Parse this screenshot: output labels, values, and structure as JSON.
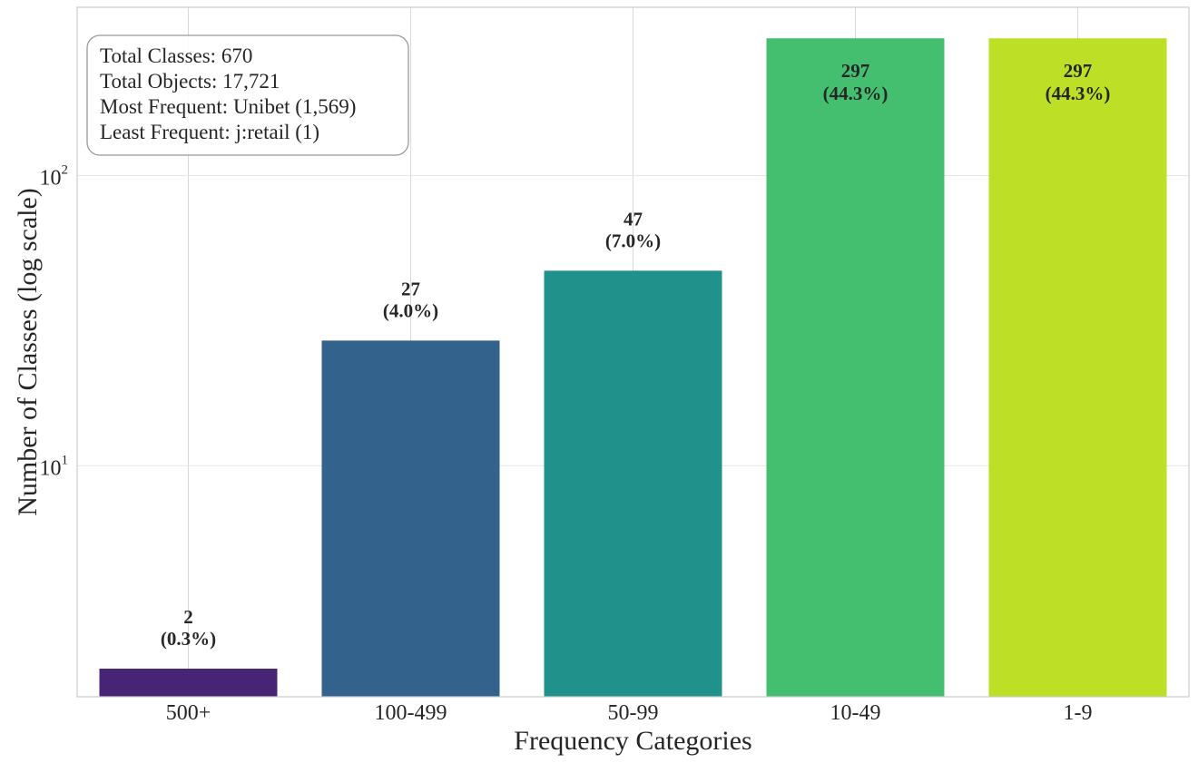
{
  "chart_data": {
    "type": "bar",
    "categories": [
      "500+",
      "100-499",
      "50-99",
      "10-49",
      "1-9"
    ],
    "values": [
      2,
      27,
      47,
      297,
      297
    ],
    "percent_labels": [
      "(0.3%)",
      "(4.0%)",
      "(7.0%)",
      "(44.3%)",
      "(44.3%)"
    ],
    "colors": [
      "#482475",
      "#33638d",
      "#21918c",
      "#44bf70",
      "#bddf26"
    ],
    "xlabel": "Frequency Categories",
    "ylabel": "Number of Classes (log scale)",
    "yscale": "log",
    "ylim": [
      1.6,
      380
    ],
    "yticks": [
      {
        "value": 10,
        "base": "10",
        "exp": "1"
      },
      {
        "value": 100,
        "base": "10",
        "exp": "2"
      }
    ],
    "grid": true,
    "stats_box": {
      "position": "top-left",
      "lines": [
        "Total Classes: 670",
        "Total Objects: 17,721",
        "Most Frequent: Unibet (1,569)",
        "Least Frequent: j:retail (1)"
      ]
    }
  }
}
